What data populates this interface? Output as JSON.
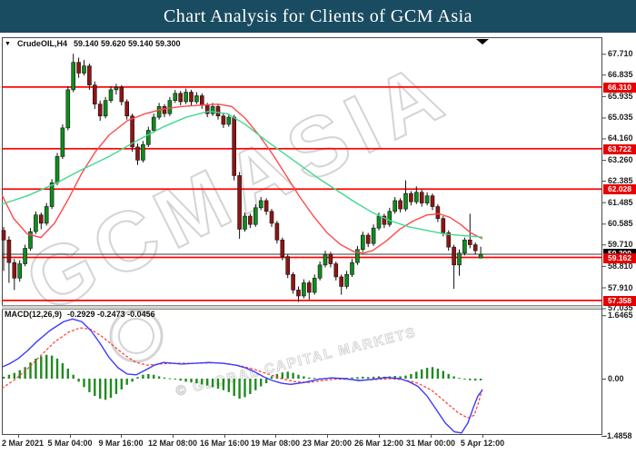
{
  "title": "Chart Analysis for Clients of GCM Asia",
  "title_bar_color": "#1a4c61",
  "chart": {
    "symbol": "CrudeOIL,H4",
    "ohlc_text": "59.140 59.620 59.140 59.300",
    "collapse_icon": "triangle-down",
    "shift_marker": "triangle-down"
  },
  "watermark": {
    "line1": "GCMASIA",
    "line2": "© GLOBAL CAPITAL MARKETS",
    "color": "#d4d4d4"
  },
  "chart_data": {
    "type": "candlestick",
    "symbol": "CrudeOIL",
    "timeframe": "H4",
    "title": "CrudeOIL,H4",
    "ohlc_current": {
      "open": "59.140",
      "high": "59.620",
      "low": "59.140",
      "close": "59.300"
    },
    "current_price": 59.3,
    "current_price_tag": "59.300",
    "y_axis_ticks": [
      "67.710",
      "66.835",
      "65.935",
      "65.035",
      "64.160",
      "63.260",
      "62.385",
      "61.485",
      "60.585",
      "59.710",
      "58.810",
      "57.910",
      "57.035"
    ],
    "x_axis_ticks": [
      "2 Mar 2021",
      "5 Mar 04:00",
      "9 Mar 16:00",
      "12 Mar 08:00",
      "16 Mar 16:00",
      "19 Mar 08:00",
      "23 Mar 20:00",
      "26 Mar 12:00",
      "31 Mar 00:00",
      "5 Apr 12:00"
    ],
    "hlines": [
      {
        "price": 66.31,
        "label": "66.310",
        "color": "#ff0000"
      },
      {
        "price": 63.722,
        "label": "63.722",
        "color": "#ff0000"
      },
      {
        "price": 62.028,
        "label": "62.028",
        "color": "#ff0000"
      },
      {
        "price": 59.162,
        "label": "59.162",
        "color": "#ff0000"
      },
      {
        "price": 57.358,
        "label": "57.358",
        "color": "#ff0000"
      }
    ],
    "ylim": [
      56.9,
      68.1
    ],
    "grid": false,
    "colors": {
      "bull": "#0f8c1e",
      "bear": "#8e1515",
      "wick": "#111111",
      "ma_red": "#ff4a4a",
      "ma_green": "#40d98f",
      "hline": "#ff0000",
      "tag_red": "#e60000",
      "tag_black": "#000000",
      "macd_line": "#3a3aff",
      "macd_signal": "#ff3b30",
      "macd_hist": "#1f8b1f",
      "price_line": "#3c3c3c"
    },
    "candles": [
      [
        60.3,
        60.45,
        58.6,
        59.9
      ],
      [
        59.9,
        60.05,
        58.1,
        58.95
      ],
      [
        58.95,
        59.1,
        57.8,
        58.3
      ],
      [
        58.3,
        59.05,
        58.15,
        58.9
      ],
      [
        58.9,
        59.7,
        58.8,
        59.55
      ],
      [
        59.55,
        60.4,
        59.45,
        60.25
      ],
      [
        60.25,
        61.1,
        60.15,
        60.95
      ],
      [
        60.95,
        61.05,
        60.35,
        60.6
      ],
      [
        60.6,
        61.45,
        60.5,
        61.3
      ],
      [
        61.3,
        62.45,
        61.2,
        62.3
      ],
      [
        62.3,
        63.55,
        62.2,
        63.4
      ],
      [
        63.4,
        64.75,
        63.3,
        64.6
      ],
      [
        64.6,
        66.35,
        64.5,
        66.2
      ],
      [
        66.2,
        67.71,
        66.1,
        67.35
      ],
      [
        67.35,
        67.55,
        66.7,
        66.9
      ],
      [
        66.9,
        67.45,
        66.8,
        67.2
      ],
      [
        67.2,
        67.3,
        66.2,
        66.4
      ],
      [
        66.4,
        66.55,
        65.4,
        65.6
      ],
      [
        65.6,
        65.75,
        64.9,
        65.1
      ],
      [
        65.1,
        65.9,
        65.0,
        65.75
      ],
      [
        65.75,
        66.35,
        65.65,
        66.2
      ],
      [
        66.2,
        66.45,
        66.0,
        66.3
      ],
      [
        66.3,
        66.4,
        65.55,
        65.7
      ],
      [
        65.7,
        65.8,
        64.95,
        65.1
      ],
      [
        65.1,
        65.2,
        63.6,
        63.8
      ],
      [
        63.8,
        63.95,
        63.05,
        63.25
      ],
      [
        63.25,
        64.05,
        63.15,
        63.9
      ],
      [
        63.9,
        64.65,
        63.8,
        64.5
      ],
      [
        64.5,
        65.2,
        64.4,
        65.05
      ],
      [
        65.05,
        65.65,
        64.95,
        65.5
      ],
      [
        65.5,
        65.6,
        65.05,
        65.2
      ],
      [
        65.2,
        65.9,
        65.1,
        65.75
      ],
      [
        65.75,
        66.2,
        65.65,
        66.05
      ],
      [
        66.05,
        66.15,
        65.55,
        65.7
      ],
      [
        65.7,
        66.25,
        65.6,
        66.1
      ],
      [
        66.1,
        66.2,
        65.55,
        65.7
      ],
      [
        65.7,
        66.1,
        65.6,
        65.95
      ],
      [
        65.95,
        66.05,
        65.4,
        65.55
      ],
      [
        65.55,
        65.65,
        65.05,
        65.2
      ],
      [
        65.2,
        65.65,
        65.1,
        65.5
      ],
      [
        65.5,
        65.6,
        64.95,
        65.1
      ],
      [
        65.1,
        65.2,
        64.6,
        64.75
      ],
      [
        64.75,
        65.2,
        64.65,
        65.05
      ],
      [
        65.05,
        65.15,
        62.4,
        62.6
      ],
      [
        62.6,
        62.75,
        59.95,
        60.35
      ],
      [
        60.35,
        61.05,
        60.25,
        60.9
      ],
      [
        60.9,
        61.0,
        60.4,
        60.55
      ],
      [
        60.55,
        61.4,
        60.45,
        61.25
      ],
      [
        61.25,
        61.7,
        61.15,
        61.55
      ],
      [
        61.55,
        61.65,
        60.95,
        61.1
      ],
      [
        61.1,
        61.2,
        60.45,
        60.6
      ],
      [
        60.6,
        60.7,
        59.75,
        59.9
      ],
      [
        59.9,
        60.0,
        59.05,
        59.2
      ],
      [
        59.2,
        59.3,
        58.3,
        58.45
      ],
      [
        58.45,
        58.55,
        57.65,
        57.8
      ],
      [
        57.8,
        57.95,
        57.3,
        57.55
      ],
      [
        57.55,
        58.25,
        57.45,
        58.1
      ],
      [
        58.1,
        58.2,
        57.4,
        57.7
      ],
      [
        57.7,
        58.45,
        57.6,
        58.3
      ],
      [
        58.3,
        59.0,
        58.2,
        58.85
      ],
      [
        58.85,
        59.45,
        58.75,
        59.3
      ],
      [
        59.3,
        59.4,
        58.75,
        58.9
      ],
      [
        58.9,
        59.0,
        58.2,
        58.35
      ],
      [
        58.35,
        58.45,
        57.6,
        57.95
      ],
      [
        57.95,
        58.6,
        57.85,
        58.45
      ],
      [
        58.45,
        59.1,
        58.35,
        58.95
      ],
      [
        58.95,
        59.65,
        58.85,
        59.5
      ],
      [
        59.5,
        60.25,
        59.4,
        60.1
      ],
      [
        60.1,
        60.2,
        59.6,
        59.75
      ],
      [
        59.75,
        60.55,
        59.65,
        60.4
      ],
      [
        60.4,
        61.05,
        60.3,
        60.9
      ],
      [
        60.9,
        61.0,
        60.4,
        60.55
      ],
      [
        60.55,
        61.25,
        60.45,
        61.1
      ],
      [
        61.1,
        61.7,
        61.0,
        61.55
      ],
      [
        61.55,
        61.65,
        61.05,
        61.2
      ],
      [
        61.2,
        62.4,
        61.1,
        61.85
      ],
      [
        61.85,
        61.95,
        61.35,
        61.5
      ],
      [
        61.5,
        62.15,
        61.4,
        61.9
      ],
      [
        61.9,
        62.0,
        61.3,
        61.45
      ],
      [
        61.45,
        61.9,
        61.35,
        61.75
      ],
      [
        61.75,
        61.85,
        61.15,
        61.3
      ],
      [
        61.3,
        61.4,
        60.65,
        60.8
      ],
      [
        60.8,
        60.9,
        60.05,
        60.2
      ],
      [
        60.2,
        60.3,
        59.45,
        59.6
      ],
      [
        59.6,
        59.7,
        57.85,
        58.85
      ],
      [
        58.85,
        59.5,
        58.4,
        59.35
      ],
      [
        59.35,
        60.0,
        59.25,
        59.9
      ],
      [
        59.9,
        61.0,
        59.55,
        59.7
      ],
      [
        59.7,
        59.8,
        59.3,
        59.45
      ],
      [
        59.14,
        59.62,
        59.14,
        59.3
      ]
    ],
    "ma_red": [
      [
        2,
        61.8
      ],
      [
        15,
        60.8
      ],
      [
        30,
        60.15
      ],
      [
        45,
        60.0
      ],
      [
        60,
        60.6
      ],
      [
        75,
        61.6
      ],
      [
        90,
        62.7
      ],
      [
        105,
        63.6
      ],
      [
        120,
        64.3
      ],
      [
        140,
        64.9
      ],
      [
        160,
        65.2
      ],
      [
        180,
        65.4
      ],
      [
        200,
        65.5
      ],
      [
        220,
        65.55
      ],
      [
        240,
        65.6
      ],
      [
        255,
        65.5
      ],
      [
        270,
        65.0
      ],
      [
        285,
        64.3
      ],
      [
        300,
        63.5
      ],
      [
        315,
        62.6
      ],
      [
        330,
        61.7
      ],
      [
        345,
        60.9
      ],
      [
        360,
        60.2
      ],
      [
        375,
        59.7
      ],
      [
        390,
        59.4
      ],
      [
        400,
        59.35
      ],
      [
        410,
        59.45
      ],
      [
        425,
        59.85
      ],
      [
        440,
        60.35
      ],
      [
        455,
        60.7
      ],
      [
        470,
        60.95
      ],
      [
        483,
        61.0
      ],
      [
        495,
        60.85
      ],
      [
        507,
        60.55
      ],
      [
        518,
        60.2
      ],
      [
        531,
        59.95
      ]
    ],
    "ma_green": [
      [
        2,
        61.4
      ],
      [
        30,
        61.75
      ],
      [
        60,
        62.25
      ],
      [
        90,
        62.85
      ],
      [
        120,
        63.4
      ],
      [
        150,
        64.05
      ],
      [
        180,
        64.65
      ],
      [
        205,
        65.05
      ],
      [
        230,
        65.3
      ],
      [
        250,
        65.2
      ],
      [
        270,
        64.75
      ],
      [
        290,
        64.15
      ],
      [
        310,
        63.6
      ],
      [
        330,
        63.05
      ],
      [
        350,
        62.5
      ],
      [
        370,
        62.0
      ],
      [
        390,
        61.5
      ],
      [
        410,
        61.05
      ],
      [
        430,
        60.7
      ],
      [
        450,
        60.45
      ],
      [
        470,
        60.3
      ],
      [
        490,
        60.15
      ],
      [
        510,
        60.08
      ],
      [
        531,
        60.02
      ]
    ],
    "macd": {
      "label": "MACD(12,26,9)",
      "values_text": "-0.2929 -0.2473 -0.0456",
      "macd_value": -0.2929,
      "signal_value": -0.2473,
      "histogram_value": -0.0456,
      "axis_ticks": [
        "1.6465",
        "0.00",
        "-1.4858"
      ],
      "axis_range": [
        1.6465,
        -1.4858
      ],
      "histogram": [
        0.05,
        0.1,
        0.15,
        0.22,
        0.3,
        0.42,
        0.52,
        0.58,
        0.62,
        0.6,
        0.52,
        0.4,
        0.26,
        0.1,
        -0.08,
        -0.22,
        -0.35,
        -0.45,
        -0.52,
        -0.55,
        -0.5,
        -0.4,
        -0.28,
        -0.16,
        -0.08,
        0.04,
        0.1,
        0.12,
        0.1,
        0.06,
        0.03,
        0.01,
        -0.02,
        -0.05,
        -0.08,
        -0.1,
        -0.12,
        -0.15,
        -0.18,
        -0.22,
        -0.26,
        -0.3,
        -0.35,
        -0.45,
        -0.52,
        -0.48,
        -0.4,
        -0.3,
        -0.2,
        -0.12,
        0.06,
        0.12,
        0.16,
        0.18,
        0.15,
        0.1,
        0.06,
        0.03,
        0.02,
        0.01,
        0.02,
        0.03,
        0.02,
        0.01,
        0.02,
        0.03,
        0.04,
        0.05,
        0.04,
        0.05,
        0.06,
        0.05,
        0.06,
        0.07,
        0.06,
        0.08,
        0.12,
        0.18,
        0.24,
        0.28,
        0.3,
        0.26,
        0.2,
        0.12,
        0.06,
        0.02,
        -0.02,
        -0.04,
        -0.05,
        -0.0456
      ],
      "macd_line": [
        [
          2,
          0.3
        ],
        [
          10,
          0.38
        ],
        [
          20,
          0.52
        ],
        [
          30,
          0.72
        ],
        [
          40,
          0.95
        ],
        [
          55,
          1.25
        ],
        [
          70,
          1.48
        ],
        [
          80,
          1.55
        ],
        [
          90,
          1.48
        ],
        [
          100,
          1.25
        ],
        [
          110,
          0.92
        ],
        [
          120,
          0.55
        ],
        [
          130,
          0.28
        ],
        [
          140,
          0.12
        ],
        [
          150,
          0.1
        ],
        [
          160,
          0.22
        ],
        [
          170,
          0.35
        ],
        [
          180,
          0.42
        ],
        [
          190,
          0.4
        ],
        [
          200,
          0.38
        ],
        [
          215,
          0.4
        ],
        [
          230,
          0.42
        ],
        [
          245,
          0.4
        ],
        [
          260,
          0.35
        ],
        [
          270,
          0.28
        ],
        [
          280,
          0.18
        ],
        [
          290,
          0.05
        ],
        [
          300,
          -0.05
        ],
        [
          310,
          -0.12
        ],
        [
          320,
          -0.15
        ],
        [
          335,
          -0.1
        ],
        [
          350,
          -0.02
        ],
        [
          365,
          0.02
        ],
        [
          380,
          0.0
        ],
        [
          395,
          -0.05
        ],
        [
          410,
          -0.02
        ],
        [
          425,
          0.03
        ],
        [
          440,
          0.0
        ],
        [
          450,
          -0.08
        ],
        [
          460,
          -0.2
        ],
        [
          470,
          -0.45
        ],
        [
          480,
          -0.8
        ],
        [
          490,
          -1.15
        ],
        [
          500,
          -1.38
        ],
        [
          508,
          -1.41
        ],
        [
          515,
          -1.15
        ],
        [
          521,
          -0.75
        ],
        [
          526,
          -0.45
        ],
        [
          531,
          -0.2929
        ]
      ],
      "signal_line": [
        [
          2,
          -0.25
        ],
        [
          15,
          -0.05
        ],
        [
          30,
          0.25
        ],
        [
          45,
          0.6
        ],
        [
          60,
          0.95
        ],
        [
          75,
          1.2
        ],
        [
          88,
          1.32
        ],
        [
          100,
          1.28
        ],
        [
          112,
          1.1
        ],
        [
          125,
          0.85
        ],
        [
          138,
          0.6
        ],
        [
          150,
          0.42
        ],
        [
          162,
          0.35
        ],
        [
          175,
          0.38
        ],
        [
          190,
          0.4
        ],
        [
          205,
          0.4
        ],
        [
          220,
          0.4
        ],
        [
          235,
          0.41
        ],
        [
          250,
          0.39
        ],
        [
          265,
          0.33
        ],
        [
          280,
          0.24
        ],
        [
          295,
          0.12
        ],
        [
          310,
          0.0
        ],
        [
          325,
          -0.08
        ],
        [
          340,
          -0.1
        ],
        [
          355,
          -0.05
        ],
        [
          370,
          -0.01
        ],
        [
          385,
          -0.02
        ],
        [
          400,
          -0.04
        ],
        [
          415,
          -0.02
        ],
        [
          430,
          0.0
        ],
        [
          445,
          -0.03
        ],
        [
          460,
          -0.12
        ],
        [
          475,
          -0.3
        ],
        [
          490,
          -0.6
        ],
        [
          505,
          -0.9
        ],
        [
          515,
          -1.02
        ],
        [
          522,
          -0.95
        ],
        [
          527,
          -0.6
        ],
        [
          531,
          -0.2473
        ]
      ]
    }
  }
}
